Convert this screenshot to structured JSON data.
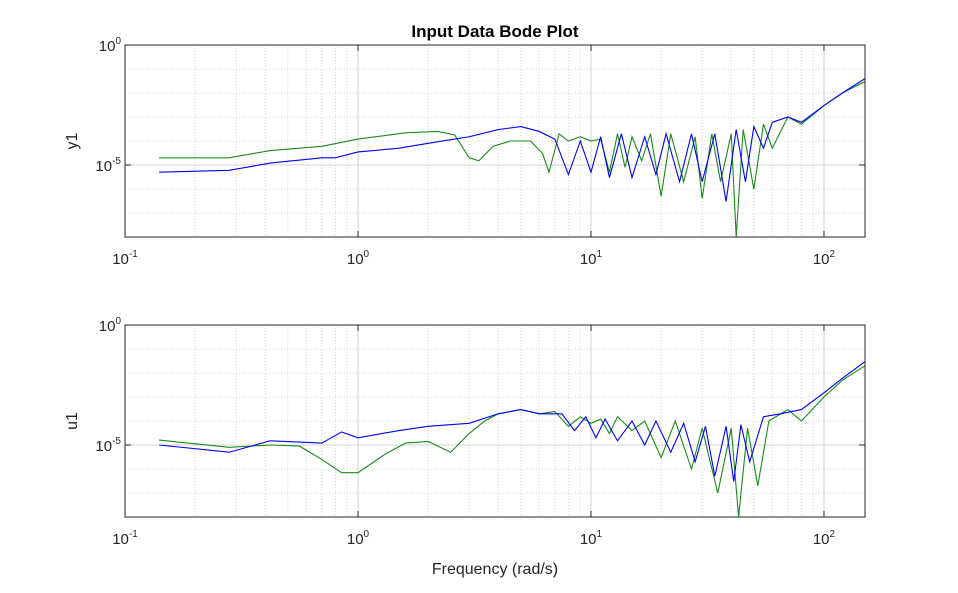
{
  "chart_data": {
    "type": "line",
    "title": "Input Data Bode Plot",
    "xlabel": "Frequency (rad/s)",
    "xscale": "log",
    "xlim": [
      0.1,
      150
    ],
    "x_tick_labels": [
      {
        "base": "10",
        "exp": "-1"
      },
      {
        "base": "10",
        "exp": "0"
      },
      {
        "base": "10",
        "exp": "1"
      },
      {
        "base": "10",
        "exp": "2"
      }
    ],
    "colors": {
      "series_1": "#1a8a1a",
      "series_2": "#0000ff",
      "grid": "#d4d4d4",
      "axis": "#262626"
    },
    "panels": [
      {
        "ylabel": "y1",
        "yscale": "log",
        "ylim": [
          1e-08,
          1
        ],
        "y_tick_labels": [
          {
            "base": "10",
            "exp": "0"
          },
          {
            "base": "10",
            "exp": "-5"
          }
        ],
        "series": [
          {
            "name": "series_1",
            "color": "#1a8a1a",
            "points": [
              [
                0.14,
                2e-05
              ],
              [
                0.28,
                2e-05
              ],
              [
                0.42,
                4e-05
              ],
              [
                0.7,
                6e-05
              ],
              [
                1.0,
                0.00012
              ],
              [
                1.6,
                0.00022
              ],
              [
                2.2,
                0.00025
              ],
              [
                2.6,
                0.00018
              ],
              [
                3.0,
                2e-05
              ],
              [
                3.3,
                1.5e-05
              ],
              [
                3.8,
                6e-05
              ],
              [
                4.5,
                0.0001
              ],
              [
                5.5,
                0.0001
              ],
              [
                6.2,
                3e-05
              ],
              [
                6.6,
                5e-06
              ],
              [
                7.3,
                0.0002
              ],
              [
                8.0,
                0.0001
              ],
              [
                9.0,
                0.00015
              ],
              [
                10.0,
                0.0001
              ],
              [
                11.0,
                0.00012
              ],
              [
                12.0,
                5e-06
              ],
              [
                13.0,
                0.0002
              ],
              [
                14.0,
                8e-06
              ],
              [
                15.0,
                0.00015
              ],
              [
                16.5,
                1.5e-05
              ],
              [
                18.0,
                0.0002
              ],
              [
                20.0,
                5e-07
              ],
              [
                22.0,
                0.0002
              ],
              [
                25.0,
                2e-06
              ],
              [
                28.0,
                0.00015
              ],
              [
                30.0,
                4e-07
              ],
              [
                33.0,
                0.0002
              ],
              [
                36.0,
                2e-06
              ],
              [
                40.0,
                0.0002
              ],
              [
                42.0,
                1e-08
              ],
              [
                45.0,
                0.0003
              ],
              [
                50.0,
                1e-06
              ],
              [
                55.0,
                0.0005
              ],
              [
                60.0,
                5e-05
              ],
              [
                70.0,
                0.001
              ],
              [
                80.0,
                0.0005
              ],
              [
                100.0,
                0.003
              ],
              [
                120.0,
                0.01
              ],
              [
                150.0,
                0.03
              ]
            ]
          },
          {
            "name": "series_2",
            "color": "#0000ff",
            "points": [
              [
                0.14,
                5e-06
              ],
              [
                0.28,
                6e-06
              ],
              [
                0.42,
                1.2e-05
              ],
              [
                0.7,
                2e-05
              ],
              [
                0.8,
                2e-05
              ],
              [
                1.0,
                3.5e-05
              ],
              [
                1.5,
                5e-05
              ],
              [
                2.0,
                8e-05
              ],
              [
                3.0,
                0.00015
              ],
              [
                4.0,
                0.0003
              ],
              [
                5.0,
                0.0004
              ],
              [
                6.0,
                0.00025
              ],
              [
                7.0,
                0.00012
              ],
              [
                8.0,
                4e-06
              ],
              [
                9.0,
                0.0001
              ],
              [
                10.0,
                5e-06
              ],
              [
                11.0,
                0.00015
              ],
              [
                12.0,
                3e-06
              ],
              [
                13.5,
                0.0002
              ],
              [
                15.0,
                3e-06
              ],
              [
                17.0,
                0.00015
              ],
              [
                19.0,
                4e-06
              ],
              [
                21.0,
                0.0002
              ],
              [
                24.0,
                2e-06
              ],
              [
                27.0,
                0.0002
              ],
              [
                30.0,
                2e-06
              ],
              [
                34.0,
                0.0002
              ],
              [
                38.0,
                3e-07
              ],
              [
                42.0,
                0.0003
              ],
              [
                46.0,
                2e-06
              ],
              [
                50.0,
                0.0004
              ],
              [
                55.0,
                5e-05
              ],
              [
                60.0,
                0.0006
              ],
              [
                70.0,
                0.001
              ],
              [
                80.0,
                0.0006
              ],
              [
                100.0,
                0.003
              ],
              [
                120.0,
                0.01
              ],
              [
                150.0,
                0.04
              ]
            ]
          }
        ]
      },
      {
        "ylabel": "u1",
        "yscale": "log",
        "ylim": [
          1e-08,
          1
        ],
        "y_tick_labels": [
          {
            "base": "10",
            "exp": "0"
          },
          {
            "base": "10",
            "exp": "-5"
          }
        ],
        "series": [
          {
            "name": "series_1",
            "color": "#1a8a1a",
            "points": [
              [
                0.14,
                1.6e-05
              ],
              [
                0.28,
                8e-06
              ],
              [
                0.42,
                1e-05
              ],
              [
                0.56,
                9e-06
              ],
              [
                0.7,
                2.5e-06
              ],
              [
                0.85,
                7e-07
              ],
              [
                1.0,
                7e-07
              ],
              [
                1.3,
                4e-06
              ],
              [
                1.6,
                1.2e-05
              ],
              [
                2.0,
                1.4e-05
              ],
              [
                2.5,
                5e-06
              ],
              [
                3.0,
                3e-05
              ],
              [
                3.5,
                0.0001
              ],
              [
                4.0,
                0.0002
              ],
              [
                5.0,
                0.0003
              ],
              [
                6.0,
                0.0002
              ],
              [
                7.0,
                0.00025
              ],
              [
                8.0,
                6e-05
              ],
              [
                9.0,
                0.00015
              ],
              [
                10.0,
                8e-05
              ],
              [
                11.0,
                0.00012
              ],
              [
                12.0,
                3e-05
              ],
              [
                13.0,
                0.00015
              ],
              [
                15.0,
                4e-05
              ],
              [
                17.0,
                0.0001
              ],
              [
                20.0,
                3e-06
              ],
              [
                23.0,
                0.0001
              ],
              [
                27.0,
                1e-06
              ],
              [
                30.0,
                5e-05
              ],
              [
                35.0,
                1e-07
              ],
              [
                40.0,
                5e-05
              ],
              [
                43.0,
                1e-08
              ],
              [
                47.0,
                5e-05
              ],
              [
                52.0,
                2e-07
              ],
              [
                58.0,
                0.0001
              ],
              [
                70.0,
                0.0003
              ],
              [
                80.0,
                0.0001
              ],
              [
                100.0,
                0.001
              ],
              [
                120.0,
                0.005
              ],
              [
                150.0,
                0.02
              ]
            ]
          },
          {
            "name": "series_2",
            "color": "#0000ff",
            "points": [
              [
                0.14,
                1e-05
              ],
              [
                0.28,
                5e-06
              ],
              [
                0.42,
                1.5e-05
              ],
              [
                0.7,
                1.2e-05
              ],
              [
                0.85,
                3.5e-05
              ],
              [
                1.0,
                2e-05
              ],
              [
                1.5,
                4e-05
              ],
              [
                2.0,
                6e-05
              ],
              [
                3.0,
                8e-05
              ],
              [
                4.0,
                0.0002
              ],
              [
                5.0,
                0.0003
              ],
              [
                6.0,
                0.0002
              ],
              [
                7.5,
                0.0002
              ],
              [
                8.5,
                4e-05
              ],
              [
                9.5,
                0.00015
              ],
              [
                10.5,
                2e-05
              ],
              [
                11.5,
                0.00012
              ],
              [
                13.0,
                1.5e-05
              ],
              [
                15.0,
                0.0001
              ],
              [
                17.0,
                1e-05
              ],
              [
                19.0,
                0.0001
              ],
              [
                22.0,
                5e-06
              ],
              [
                25.0,
                8e-05
              ],
              [
                28.0,
                2e-06
              ],
              [
                31.0,
                6e-05
              ],
              [
                34.0,
                5e-07
              ],
              [
                38.0,
                6e-05
              ],
              [
                41.0,
                3e-07
              ],
              [
                44.0,
                7e-05
              ],
              [
                48.0,
                2e-06
              ],
              [
                55.0,
                0.00015
              ],
              [
                65.0,
                0.0002
              ],
              [
                80.0,
                0.0003
              ],
              [
                100.0,
                0.0015
              ],
              [
                120.0,
                0.006
              ],
              [
                150.0,
                0.03
              ]
            ]
          }
        ]
      }
    ]
  }
}
